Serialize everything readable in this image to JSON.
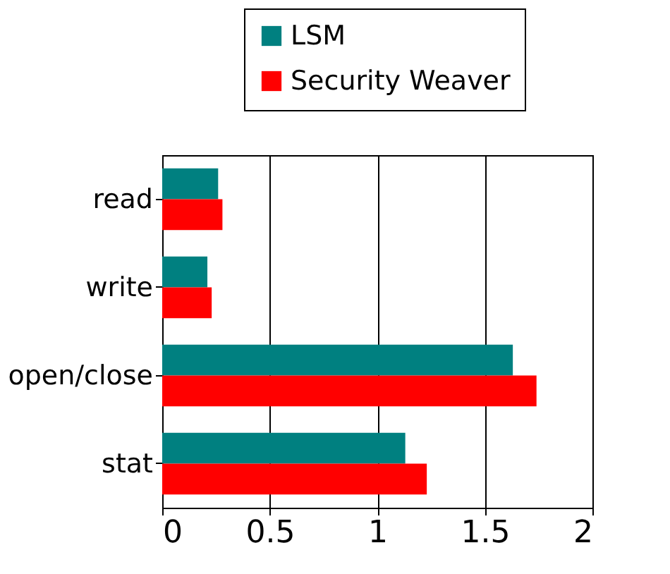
{
  "chart_data": {
    "type": "bar",
    "orientation": "horizontal",
    "categories": [
      "read",
      "write",
      "open/close",
      "stat"
    ],
    "series": [
      {
        "name": "LSM",
        "color": "#008080",
        "values": [
          0.26,
          0.21,
          1.63,
          1.13
        ]
      },
      {
        "name": "Security Weaver",
        "color": "#ff0000",
        "values": [
          0.28,
          0.23,
          1.74,
          1.23
        ]
      }
    ],
    "xlim": [
      0,
      2
    ],
    "xticks": [
      0,
      0.5,
      1,
      1.5,
      2
    ],
    "grid": "x",
    "legend": "top right"
  }
}
